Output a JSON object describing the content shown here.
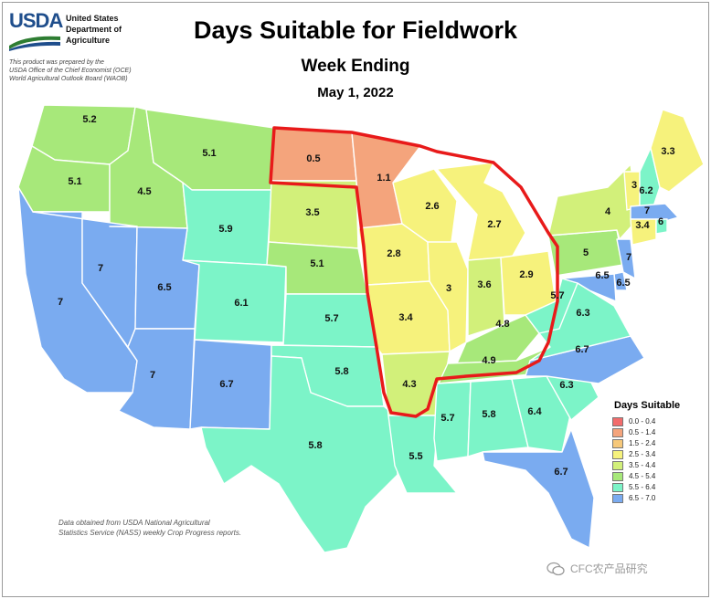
{
  "agency": {
    "wordmark": "USDA",
    "name_lines": [
      "United States",
      "Department of",
      "Agriculture"
    ],
    "note_lines": [
      "This product was prepared by the",
      "USDA Office of the Chief Economist (OCE)",
      "World Agricultural Outlook Board (WAOB)"
    ]
  },
  "title": "Days Suitable for Fieldwork",
  "subtitle": "Week Ending",
  "date": "May 1, 2022",
  "legend": {
    "title": "Days Suitable",
    "items": [
      {
        "label": "0.0 - 0.4",
        "color": "#f26c6c"
      },
      {
        "label": "0.5 - 1.4",
        "color": "#f4a47c"
      },
      {
        "label": "1.5 - 2.4",
        "color": "#f6c87a"
      },
      {
        "label": "2.5 - 3.4",
        "color": "#f6f27c"
      },
      {
        "label": "3.5 - 4.4",
        "color": "#d2f07a"
      },
      {
        "label": "4.5 - 5.4",
        "color": "#a7e87a"
      },
      {
        "label": "5.5 - 6.4",
        "color": "#7cf4c8"
      },
      {
        "label": "6.5 - 7.0",
        "color": "#7aabf0"
      }
    ]
  },
  "states": [
    {
      "name": "WA",
      "value": "5.2",
      "color": "#a7e87a"
    },
    {
      "name": "OR",
      "value": "5.1",
      "color": "#a7e87a"
    },
    {
      "name": "ID",
      "value": "4.5",
      "color": "#a7e87a"
    },
    {
      "name": "MT",
      "value": "5.1",
      "color": "#a7e87a"
    },
    {
      "name": "WY",
      "value": "5.9",
      "color": "#7cf4c8"
    },
    {
      "name": "CA",
      "value": "7",
      "color": "#7aabf0"
    },
    {
      "name": "NV",
      "value": "7",
      "color": "#7aabf0"
    },
    {
      "name": "UT",
      "value": "6.5",
      "color": "#7aabf0"
    },
    {
      "name": "AZ",
      "value": "7",
      "color": "#7aabf0"
    },
    {
      "name": "CO",
      "value": "6.1",
      "color": "#7cf4c8"
    },
    {
      "name": "NM",
      "value": "6.7",
      "color": "#7aabf0"
    },
    {
      "name": "ND",
      "value": "0.5",
      "color": "#f4a47c"
    },
    {
      "name": "SD",
      "value": "3.5",
      "color": "#d2f07a"
    },
    {
      "name": "NE",
      "value": "5.1",
      "color": "#a7e87a"
    },
    {
      "name": "KS",
      "value": "5.7",
      "color": "#7cf4c8"
    },
    {
      "name": "OK",
      "value": "5.8",
      "color": "#7cf4c8"
    },
    {
      "name": "TX",
      "value": "5.8",
      "color": "#7cf4c8"
    },
    {
      "name": "MN",
      "value": "1.1",
      "color": "#f4a47c"
    },
    {
      "name": "IA",
      "value": "2.8",
      "color": "#f6f27c"
    },
    {
      "name": "MO",
      "value": "3.4",
      "color": "#f6f27c"
    },
    {
      "name": "AR",
      "value": "4.3",
      "color": "#d2f07a"
    },
    {
      "name": "LA",
      "value": "5.5",
      "color": "#7cf4c8"
    },
    {
      "name": "WI",
      "value": "2.6",
      "color": "#f6f27c"
    },
    {
      "name": "IL",
      "value": "3",
      "color": "#f6f27c"
    },
    {
      "name": "MI",
      "value": "2.7",
      "color": "#f6f27c"
    },
    {
      "name": "IN",
      "value": "3.6",
      "color": "#d2f07a"
    },
    {
      "name": "OH",
      "value": "2.9",
      "color": "#f6f27c"
    },
    {
      "name": "KY",
      "value": "4.8",
      "color": "#a7e87a"
    },
    {
      "name": "TN",
      "value": "4.9",
      "color": "#a7e87a"
    },
    {
      "name": "MS",
      "value": "5.7",
      "color": "#7cf4c8"
    },
    {
      "name": "AL",
      "value": "5.8",
      "color": "#7cf4c8"
    },
    {
      "name": "GA",
      "value": "6.4",
      "color": "#7cf4c8"
    },
    {
      "name": "FL",
      "value": "6.7",
      "color": "#7aabf0"
    },
    {
      "name": "SC",
      "value": "6.3",
      "color": "#7cf4c8"
    },
    {
      "name": "NC",
      "value": "6.7",
      "color": "#7aabf0"
    },
    {
      "name": "VA",
      "value": "6.3",
      "color": "#7cf4c8"
    },
    {
      "name": "WV",
      "value": "5.7",
      "color": "#7cf4c8"
    },
    {
      "name": "PA",
      "value": "5",
      "color": "#a7e87a"
    },
    {
      "name": "NY",
      "value": "4",
      "color": "#d2f07a"
    },
    {
      "name": "NJ",
      "value": "7",
      "color": "#7aabf0"
    },
    {
      "name": "DE",
      "value": "6.5",
      "color": "#7aabf0"
    },
    {
      "name": "MD",
      "value": "6.5",
      "color": "#7aabf0"
    },
    {
      "name": "VT",
      "value": "3",
      "color": "#f6f27c"
    },
    {
      "name": "NH",
      "value": "6.2",
      "color": "#7cf4c8"
    },
    {
      "name": "ME",
      "value": "3.3",
      "color": "#f6f27c"
    },
    {
      "name": "MA",
      "value": "7",
      "color": "#7aabf0"
    },
    {
      "name": "CT",
      "value": "3.4",
      "color": "#f6f27c"
    },
    {
      "name": "RI",
      "value": "6",
      "color": "#7cf4c8"
    }
  ],
  "highlight_color": "#e81a1a",
  "source_note_lines": [
    "Data obtained from USDA National Agricultural",
    "Statistics Service (NASS) weekly Crop Progress reports."
  ],
  "watermark": "CFC农产品研究"
}
